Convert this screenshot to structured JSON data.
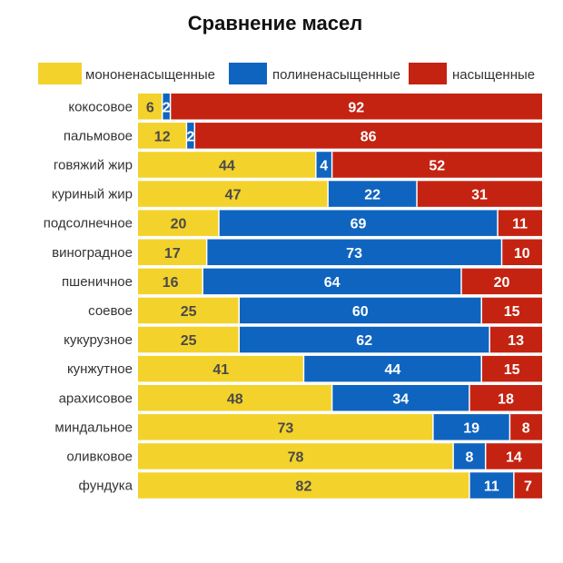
{
  "chart_data": {
    "type": "bar",
    "orientation": "horizontal",
    "stacked": true,
    "title": "Сравнение масел",
    "legend_position": "top",
    "categories": [
      "кокосовое",
      "пальмовое",
      "говяжий жир",
      "куриный жир",
      "подсолнечное",
      "виноградное",
      "пшеничное",
      "соевое",
      "кукурузное",
      "кунжутное",
      "арахисовое",
      "миндальное",
      "оливковое",
      "фундука"
    ],
    "series": [
      {
        "name": "мононенасыщенные",
        "color": "#f3d22b",
        "values": [
          6,
          12,
          44,
          47,
          20,
          17,
          16,
          25,
          25,
          41,
          48,
          73,
          78,
          82
        ]
      },
      {
        "name": "полиненасыщенные",
        "color": "#0f64c0",
        "values": [
          2,
          2,
          4,
          22,
          69,
          73,
          64,
          60,
          62,
          44,
          34,
          19,
          8,
          11
        ]
      },
      {
        "name": "насыщенные",
        "color": "#c42312",
        "values": [
          92,
          86,
          52,
          31,
          11,
          10,
          20,
          15,
          13,
          15,
          18,
          8,
          14,
          7
        ]
      }
    ]
  }
}
